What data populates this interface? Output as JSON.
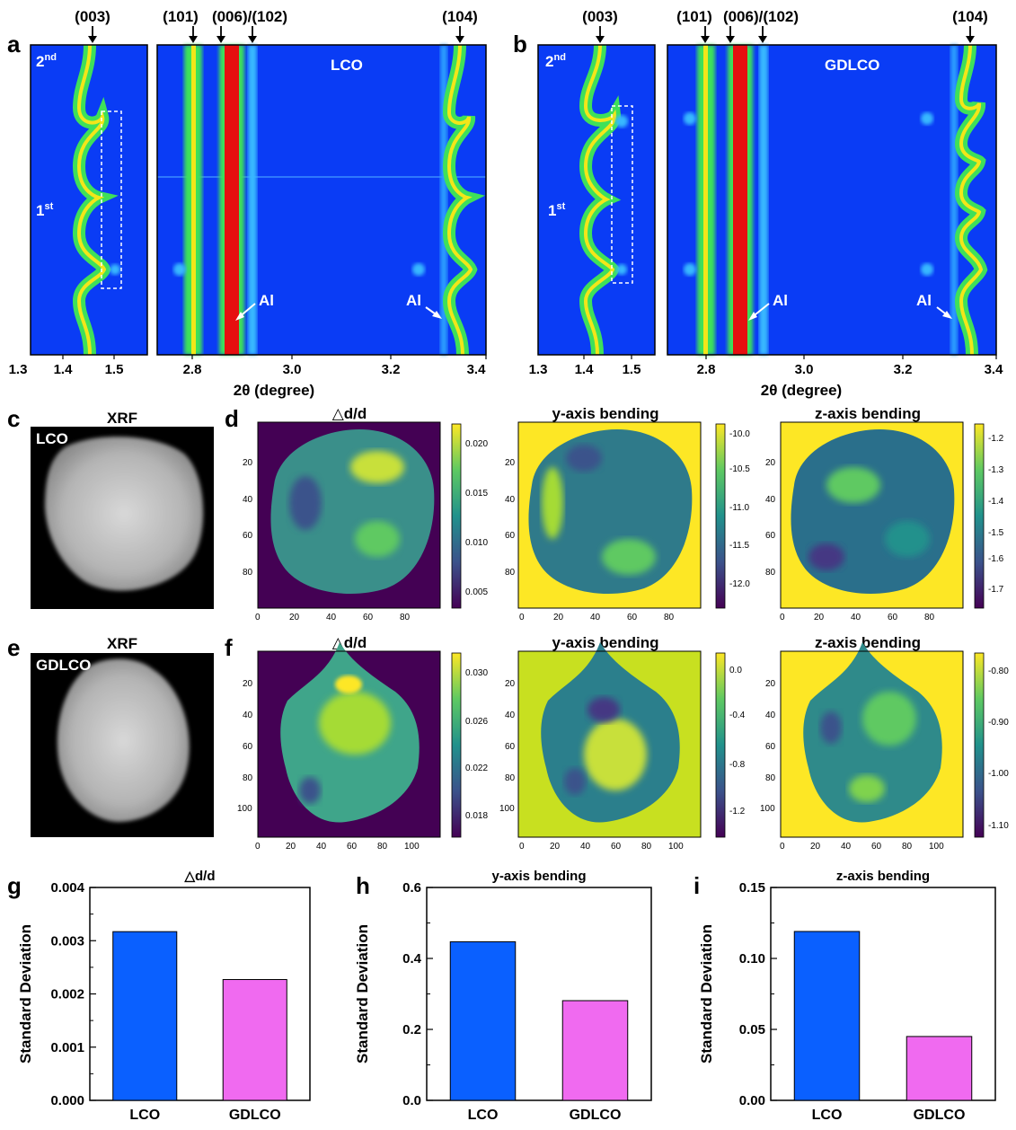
{
  "panel_letters": [
    "a",
    "b",
    "c",
    "d",
    "e",
    "f",
    "g",
    "h",
    "i"
  ],
  "xrd": {
    "peaks_left": [
      "(003)"
    ],
    "peaks_right": [
      "(101)",
      "(006)/(102)",
      "(104)"
    ],
    "cycle_labels": {
      "second": "2",
      "second_sup": "nd",
      "first": "1",
      "first_sup": "st"
    },
    "al_label": "Al",
    "x_label": "2θ (degree)",
    "left_ticks": [
      "1.3",
      "1.4",
      "1.5"
    ],
    "right_ticks": [
      "2.8",
      "3.0",
      "3.2",
      "3.4"
    ],
    "sample_a": "LCO",
    "sample_b": "GDLCO",
    "colors": {
      "background": "#0a3cf5",
      "peak": "#3ee05a",
      "core": "#f2e619",
      "hot": "#e60f0f"
    }
  },
  "maps": {
    "xrf_title": "XRF",
    "c_sample": "LCO",
    "e_sample": "GDLCO",
    "titles": [
      "△d/d",
      "y-axis bending",
      "z-axis bending"
    ],
    "row_d": {
      "axis_ticks": [
        "0",
        "20",
        "40",
        "60",
        "80"
      ],
      "colorbars": [
        [
          "0.020",
          "0.015",
          "0.010",
          "0.005"
        ],
        [
          "-10.0",
          "-10.5",
          "-11.0",
          "-11.5",
          "-12.0"
        ],
        [
          "-1.2",
          "-1.3",
          "-1.4",
          "-1.5",
          "-1.6",
          "-1.7"
        ]
      ]
    },
    "row_f": {
      "axis_ticks": [
        "0",
        "20",
        "40",
        "60",
        "80",
        "100"
      ],
      "colorbars": [
        [
          "0.030",
          "0.026",
          "0.022",
          "0.018"
        ],
        [
          "0.0",
          "-0.4",
          "-0.8",
          "-1.2"
        ],
        [
          "-0.80",
          "-0.90",
          "-1.00",
          "-1.10"
        ]
      ]
    },
    "colors": {
      "viridis_low": "#440154",
      "viridis_mid": "#21918c",
      "viridis_high": "#fde725"
    }
  },
  "chart_data": [
    {
      "type": "bar",
      "title": "△d/d",
      "categories": [
        "LCO",
        "GDLCO"
      ],
      "values": [
        0.00317,
        0.00227
      ],
      "ylabel": "Standard Deviation",
      "ylim": [
        0,
        0.004
      ],
      "yticks": [
        "0.000",
        "0.001",
        "0.002",
        "0.003",
        "0.004"
      ]
    },
    {
      "type": "bar",
      "title": "y-axis bending",
      "categories": [
        "LCO",
        "GDLCO"
      ],
      "values": [
        0.447,
        0.281
      ],
      "ylabel": "Standard Deviation",
      "ylim": [
        0,
        0.6
      ],
      "yticks": [
        "0.0",
        "0.2",
        "0.4",
        "0.6"
      ]
    },
    {
      "type": "bar",
      "title": "z-axis bending",
      "categories": [
        "LCO",
        "GDLCO"
      ],
      "values": [
        0.119,
        0.045
      ],
      "ylabel": "Standard Deviation",
      "ylim": [
        0,
        0.15
      ],
      "yticks": [
        "0.00",
        "0.05",
        "0.10",
        "0.15"
      ]
    }
  ],
  "bar_colors": [
    "#0a60ff",
    "#f06af0"
  ]
}
